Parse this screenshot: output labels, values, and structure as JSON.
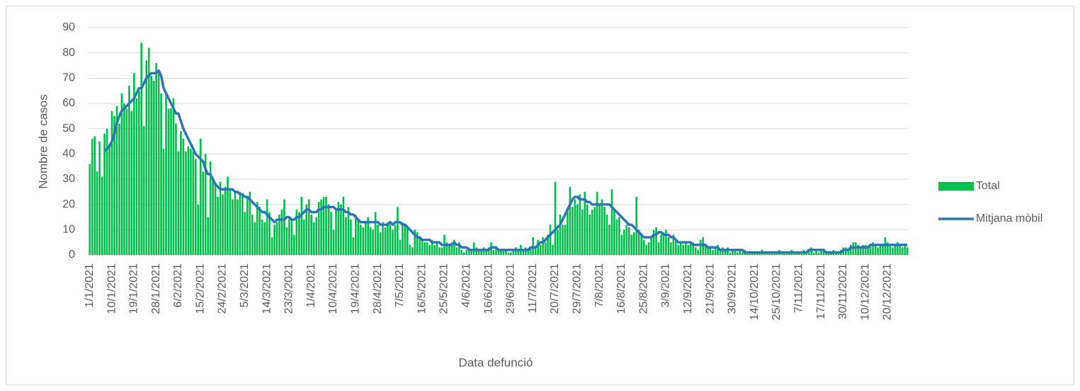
{
  "chart_data": {
    "type": "bar",
    "y_axis_label": "Nombre de casos",
    "x_axis_label": "Data defunció",
    "ylim": [
      0,
      90
    ],
    "yticks": [
      0,
      10,
      20,
      30,
      40,
      50,
      60,
      70,
      80,
      90
    ],
    "grid": true,
    "legend": "right",
    "categories": [
      "1/1/2021",
      null,
      null,
      null,
      null,
      null,
      null,
      null,
      null,
      "10/1/2021",
      null,
      null,
      null,
      null,
      null,
      null,
      null,
      null,
      "19/1/2021",
      null,
      null,
      null,
      null,
      null,
      null,
      null,
      null,
      "28/1/2021",
      null,
      null,
      null,
      null,
      null,
      null,
      null,
      null,
      "6/2/2021",
      null,
      null,
      null,
      null,
      null,
      null,
      null,
      null,
      "15/2/2021",
      null,
      null,
      null,
      null,
      null,
      null,
      null,
      null,
      "24/2/2021",
      null,
      null,
      null,
      null,
      null,
      null,
      null,
      null,
      "5/3/2021",
      null,
      null,
      null,
      null,
      null,
      null,
      null,
      null,
      "14/3/2021",
      null,
      null,
      null,
      null,
      null,
      null,
      null,
      null,
      "23/3/2021",
      null,
      null,
      null,
      null,
      null,
      null,
      null,
      null,
      "1/4/2021",
      null,
      null,
      null,
      null,
      null,
      null,
      null,
      null,
      "10/4/2021",
      null,
      null,
      null,
      null,
      null,
      null,
      null,
      null,
      "19/4/2021",
      null,
      null,
      null,
      null,
      null,
      null,
      null,
      null,
      "28/4/2021",
      null,
      null,
      null,
      null,
      null,
      null,
      null,
      null,
      "7/5/2021",
      null,
      null,
      null,
      null,
      null,
      null,
      null,
      null,
      "16/5/2021",
      null,
      null,
      null,
      null,
      null,
      null,
      null,
      null,
      "25/5/2021",
      null,
      null,
      null,
      null,
      null,
      null,
      null,
      null,
      "4/6/2021",
      null,
      null,
      null,
      null,
      null,
      null,
      null,
      null,
      "16/6/2021",
      null,
      null,
      null,
      null,
      null,
      null,
      null,
      null,
      "29/6/2021",
      null,
      null,
      null,
      null,
      null,
      null,
      null,
      null,
      "11/7/2021",
      null,
      null,
      null,
      null,
      null,
      null,
      null,
      null,
      "20/7/2021",
      null,
      null,
      null,
      null,
      null,
      null,
      null,
      null,
      "29/7/2021",
      null,
      null,
      null,
      null,
      null,
      null,
      null,
      null,
      "7/8/2021",
      null,
      null,
      null,
      null,
      null,
      null,
      null,
      null,
      "16/8/2021",
      null,
      null,
      null,
      null,
      null,
      null,
      null,
      null,
      "25/8/2021",
      null,
      null,
      null,
      null,
      null,
      null,
      null,
      null,
      "3/9/2021",
      null,
      null,
      null,
      null,
      null,
      null,
      null,
      null,
      "12/9/2021",
      null,
      null,
      null,
      null,
      null,
      null,
      null,
      null,
      "21/9/2021",
      null,
      null,
      null,
      null,
      null,
      null,
      null,
      null,
      "30/9/2021",
      null,
      null,
      null,
      null,
      null,
      null,
      null,
      null,
      "14/10/2021",
      null,
      null,
      null,
      null,
      null,
      null,
      null,
      null,
      "25/10/2021",
      null,
      null,
      null,
      null,
      null,
      null,
      null,
      null,
      "7/11/2021",
      null,
      null,
      null,
      null,
      null,
      null,
      null,
      null,
      "17/11/2021",
      null,
      null,
      null,
      null,
      null,
      null,
      null,
      null,
      "30/11/2021",
      null,
      null,
      null,
      null,
      null,
      null,
      null,
      null,
      "10/12/2021",
      null,
      null,
      null,
      null,
      null,
      null,
      null,
      null,
      "20/12/2021",
      null,
      null,
      null,
      null,
      null,
      null,
      null,
      null
    ],
    "series": [
      {
        "name": "Total",
        "type": "bar",
        "color": "#00c04b",
        "values": [
          36,
          46,
          47,
          33,
          45,
          31,
          48,
          50,
          44,
          57,
          55,
          59,
          52,
          64,
          60,
          58,
          67,
          57,
          72,
          62,
          65,
          84,
          51,
          77,
          82,
          71,
          69,
          76,
          73,
          64,
          42,
          64,
          58,
          58,
          62,
          52,
          41,
          49,
          46,
          41,
          43,
          42,
          41,
          38,
          20,
          46,
          33,
          40,
          15,
          37,
          30,
          28,
          23,
          29,
          24,
          27,
          31,
          26,
          22,
          25,
          22,
          25,
          24,
          17,
          23,
          25,
          16,
          13,
          21,
          19,
          14,
          13,
          22,
          17,
          7,
          12,
          13,
          16,
          18,
          22,
          11,
          15,
          14,
          8,
          18,
          17,
          23,
          14,
          20,
          22,
          16,
          13,
          15,
          21,
          22,
          23,
          23,
          20,
          17,
          10,
          18,
          21,
          20,
          23,
          15,
          19,
          14,
          7,
          16,
          14,
          12,
          11,
          13,
          15,
          11,
          10,
          17,
          12,
          9,
          13,
          11,
          13,
          12,
          10,
          12,
          19,
          6,
          13,
          12,
          11,
          4,
          3,
          10,
          9,
          7,
          6,
          5,
          5,
          4,
          6,
          4,
          5,
          3,
          3,
          8,
          5,
          4,
          5,
          6,
          3,
          5,
          2,
          1,
          2,
          3,
          2,
          5,
          3,
          2,
          2,
          3,
          2,
          3,
          5,
          2,
          3,
          2,
          2,
          2,
          2,
          1,
          1,
          2,
          3,
          2,
          4,
          2,
          3,
          2,
          3,
          7,
          3,
          6,
          4,
          7,
          5,
          8,
          12,
          4,
          29,
          10,
          16,
          12,
          12,
          18,
          27,
          19,
          22,
          20,
          24,
          18,
          25,
          20,
          16,
          18,
          19,
          25,
          20,
          22,
          19,
          16,
          12,
          26,
          18,
          14,
          15,
          8,
          10,
          12,
          11,
          8,
          9,
          23,
          10,
          8,
          6,
          4,
          5,
          7,
          10,
          11,
          5,
          8,
          9,
          10,
          7,
          5,
          8,
          6,
          4,
          5,
          4,
          5,
          4,
          5,
          5,
          3,
          2,
          6,
          7,
          4,
          3,
          3,
          2,
          3,
          4,
          2,
          3,
          2,
          3,
          1,
          2,
          2,
          1,
          2,
          1,
          2,
          1,
          1,
          1,
          1,
          1,
          1,
          2,
          1,
          1,
          1,
          1,
          1,
          1,
          2,
          1,
          1,
          1,
          1,
          2,
          1,
          1,
          1,
          1,
          2,
          1,
          2,
          3,
          1,
          2,
          1,
          2,
          2,
          1,
          1,
          1,
          2,
          1,
          1,
          2,
          3,
          3,
          2,
          4,
          5,
          5,
          4,
          3,
          4,
          4,
          3,
          4,
          5,
          4,
          3,
          4,
          4,
          7,
          5,
          4,
          3,
          4,
          5,
          4,
          3,
          4,
          3
        ]
      },
      {
        "name": "Mitjana mòbil",
        "type": "line",
        "color": "#2e75b6",
        "values": [
          null,
          null,
          null,
          null,
          null,
          null,
          41,
          42,
          43,
          45,
          48,
          52,
          55,
          57,
          58,
          59,
          60,
          61,
          62,
          64,
          66,
          66,
          68,
          70,
          71,
          72,
          72,
          72,
          73,
          71,
          66,
          64,
          62,
          60,
          58,
          56,
          56,
          53,
          50,
          48,
          46,
          44,
          42,
          40,
          39,
          38,
          37,
          34,
          32,
          32,
          30,
          28,
          27,
          26,
          26,
          26,
          26,
          26,
          26,
          25,
          25,
          24,
          24,
          23,
          23,
          22,
          21,
          20,
          19,
          18,
          17,
          17,
          16,
          15,
          14,
          13,
          14,
          14,
          14,
          14,
          15,
          15,
          14,
          14,
          15,
          15,
          16,
          17,
          18,
          18,
          17,
          17,
          17,
          18,
          18,
          19,
          19,
          19,
          19,
          19,
          18,
          18,
          18,
          18,
          17,
          17,
          16,
          16,
          15,
          14,
          13,
          13,
          13,
          13,
          13,
          13,
          13,
          13,
          12,
          12,
          12,
          12,
          13,
          12,
          13,
          13,
          13,
          12,
          12,
          11,
          10,
          9,
          8,
          7,
          7,
          6,
          6,
          6,
          6,
          5,
          5,
          5,
          5,
          4,
          4,
          4,
          4,
          4,
          5,
          4,
          4,
          3,
          3,
          3,
          2,
          2,
          2,
          2,
          2,
          2,
          2,
          2,
          2,
          3,
          3,
          3,
          2,
          2,
          2,
          2,
          2,
          2,
          2,
          2,
          2,
          2,
          2,
          2,
          2,
          3,
          3,
          3,
          4,
          5,
          5,
          6,
          7,
          8,
          9,
          10,
          11,
          12,
          14,
          16,
          18,
          20,
          22,
          23,
          23,
          22,
          22,
          22,
          21,
          21,
          20,
          20,
          20,
          20,
          20,
          20,
          20,
          20,
          19,
          18,
          17,
          16,
          15,
          14,
          13,
          12,
          12,
          11,
          10,
          9,
          8,
          7,
          7,
          7,
          7,
          8,
          8,
          9,
          9,
          8,
          8,
          8,
          7,
          7,
          6,
          5,
          5,
          5,
          5,
          5,
          5,
          4,
          4,
          4,
          4,
          4,
          4,
          3,
          3,
          3,
          3,
          3,
          2,
          2,
          2,
          2,
          2,
          2,
          2,
          2,
          2,
          2,
          1,
          1,
          1,
          1,
          1,
          1,
          1,
          1,
          1,
          1,
          1,
          1,
          1,
          1,
          1,
          1,
          1,
          1,
          1,
          1,
          1,
          1,
          1,
          1,
          1,
          1,
          2,
          2,
          2,
          2,
          2,
          2,
          2,
          1,
          1,
          1,
          1,
          1,
          1,
          1,
          2,
          2,
          2,
          3,
          3,
          3,
          3,
          3,
          3,
          3,
          3,
          4,
          4,
          4,
          4,
          4,
          4,
          4,
          4,
          4,
          4,
          4,
          4,
          4,
          4,
          4,
          4
        ]
      }
    ]
  }
}
